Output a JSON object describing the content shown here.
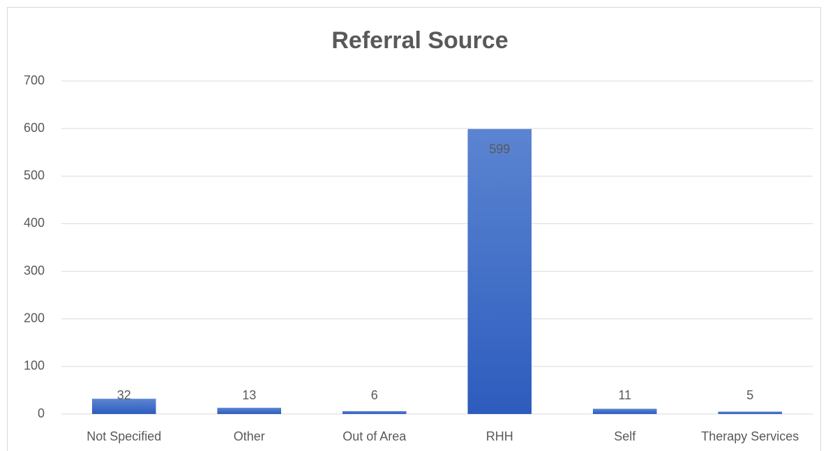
{
  "chart_data": {
    "type": "bar",
    "title": "Referral Source",
    "categories": [
      "Not Specified",
      "Other",
      "Out of Area",
      "RHH",
      "Self",
      "Therapy Services"
    ],
    "values": [
      32,
      13,
      6,
      599,
      11,
      5
    ],
    "color": "#4472c4",
    "ylim": [
      0,
      700
    ],
    "yticks": [
      0,
      100,
      200,
      300,
      400,
      500,
      600,
      700
    ],
    "grid": true
  }
}
